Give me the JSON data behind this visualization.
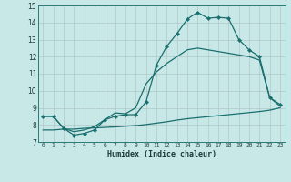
{
  "xlabel": "Humidex (Indice chaleur)",
  "bg_color": "#c8e8e8",
  "grid_color": "#b0c8c8",
  "line_color": "#1a6e6e",
  "xlim": [
    -0.5,
    23.5
  ],
  "ylim": [
    7,
    15
  ],
  "xticks": [
    0,
    1,
    2,
    3,
    4,
    5,
    6,
    7,
    8,
    9,
    10,
    11,
    12,
    13,
    14,
    15,
    16,
    17,
    18,
    19,
    20,
    21,
    22,
    23
  ],
  "yticks": [
    7,
    8,
    9,
    10,
    11,
    12,
    13,
    14,
    15
  ],
  "series1_x": [
    0,
    1,
    2,
    3,
    4,
    5,
    6,
    7,
    8,
    9,
    10,
    11,
    12,
    13,
    14,
    15,
    16,
    17,
    18,
    19,
    20,
    21,
    22,
    23
  ],
  "series1_y": [
    8.5,
    8.5,
    7.8,
    7.4,
    7.5,
    7.7,
    8.3,
    8.5,
    8.6,
    8.6,
    9.35,
    11.5,
    12.6,
    13.35,
    14.2,
    14.6,
    14.25,
    14.3,
    14.25,
    13.0,
    12.4,
    12.0,
    9.6,
    9.2
  ],
  "series2_x": [
    0,
    1,
    2,
    3,
    4,
    5,
    6,
    7,
    8,
    9,
    10,
    11,
    12,
    13,
    14,
    15,
    16,
    17,
    18,
    19,
    20,
    21,
    22,
    23
  ],
  "series2_y": [
    8.5,
    8.5,
    7.8,
    7.6,
    7.7,
    7.9,
    8.3,
    8.7,
    8.65,
    9.0,
    10.4,
    11.1,
    11.6,
    12.0,
    12.4,
    12.5,
    12.4,
    12.3,
    12.2,
    12.1,
    12.0,
    11.8,
    9.6,
    9.1
  ],
  "series3_x": [
    0,
    1,
    2,
    3,
    4,
    5,
    6,
    7,
    8,
    9,
    10,
    11,
    12,
    13,
    14,
    15,
    16,
    17,
    18,
    19,
    20,
    21,
    22,
    23
  ],
  "series3_y": [
    7.7,
    7.7,
    7.75,
    7.75,
    7.8,
    7.82,
    7.85,
    7.88,
    7.92,
    7.96,
    8.02,
    8.1,
    8.18,
    8.28,
    8.36,
    8.42,
    8.48,
    8.54,
    8.6,
    8.66,
    8.72,
    8.78,
    8.86,
    9.0
  ]
}
